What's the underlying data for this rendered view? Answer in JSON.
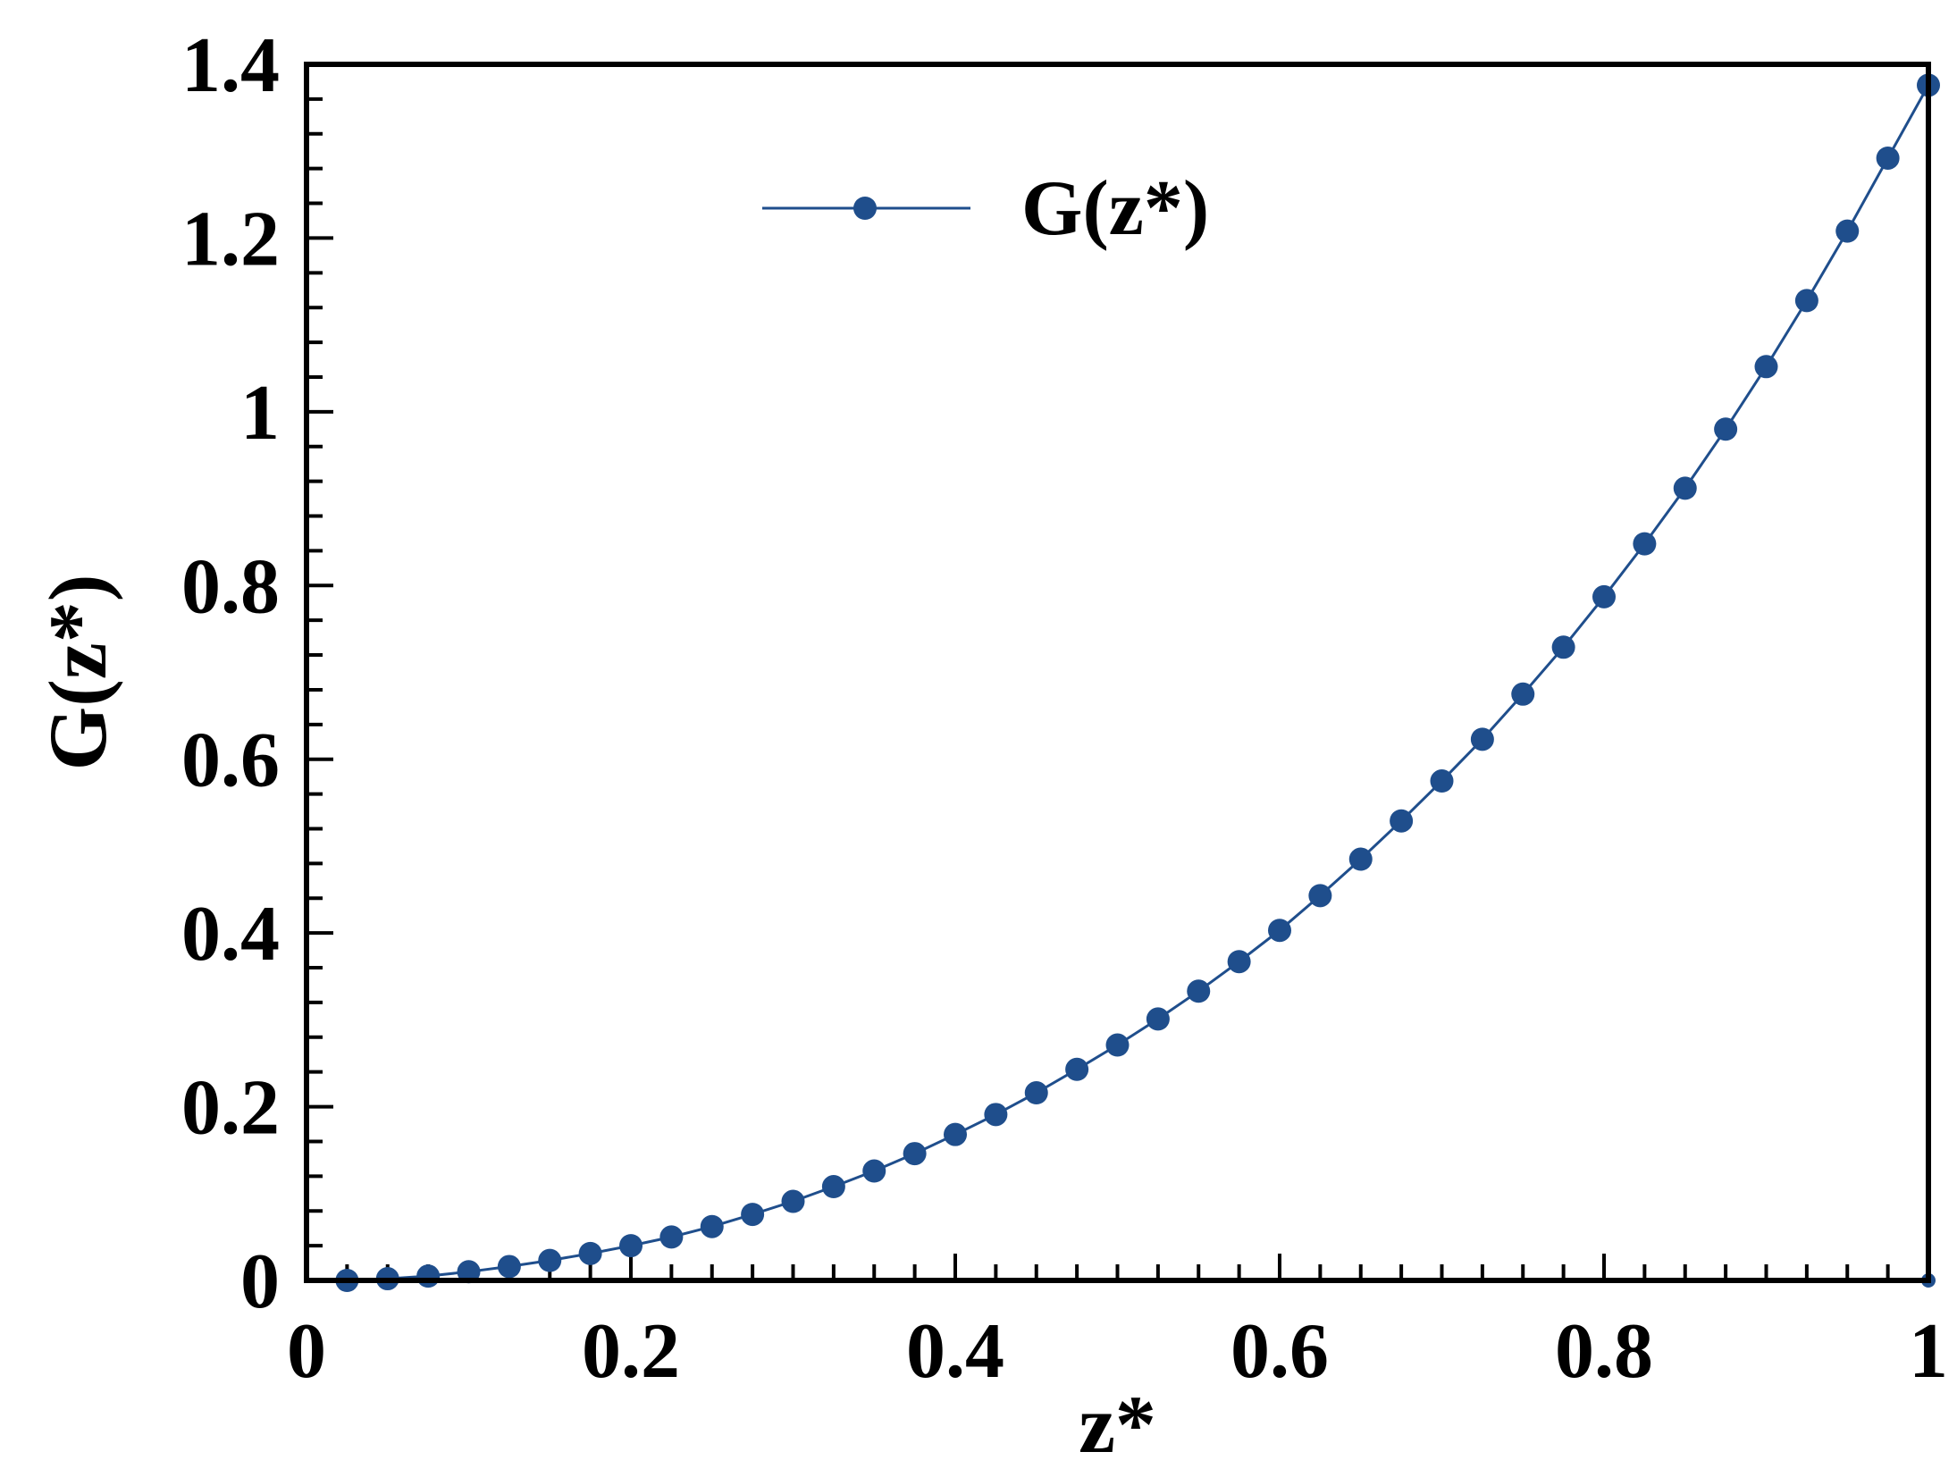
{
  "chart_data": {
    "type": "line",
    "xlabel": "z*",
    "ylabel": "G(z*)",
    "xlim": [
      0,
      1
    ],
    "ylim": [
      0,
      1.4
    ],
    "x_ticks": [
      0,
      0.2,
      0.4,
      0.6,
      0.8,
      1
    ],
    "x_tick_labels": [
      "0",
      "0.2",
      "0.4",
      "0.6",
      "0.8",
      "1"
    ],
    "y_ticks": [
      0,
      0.2,
      0.4,
      0.6,
      0.8,
      1,
      1.2,
      1.4
    ],
    "y_tick_labels": [
      "0",
      "0.2",
      "0.4",
      "0.6",
      "0.8",
      "1",
      "1.2",
      "1.4"
    ],
    "x_minor_step": 0.025,
    "y_minor_step": 0.04,
    "grid": false,
    "legend": {
      "position": "top-center",
      "entries": [
        "G(z*)"
      ]
    },
    "series": [
      {
        "name": "G(z*)",
        "color": "#1f4e8c",
        "marker": "circle",
        "x": [
          0.025,
          0.05,
          0.075,
          0.1,
          0.125,
          0.15,
          0.175,
          0.2,
          0.225,
          0.25,
          0.275,
          0.3,
          0.325,
          0.35,
          0.375,
          0.4,
          0.425,
          0.45,
          0.475,
          0.5,
          0.525,
          0.55,
          0.575,
          0.6,
          0.625,
          0.65,
          0.675,
          0.7,
          0.725,
          0.75,
          0.775,
          0.8,
          0.825,
          0.85,
          0.875,
          0.9,
          0.925,
          0.95,
          0.975,
          1.0
        ],
        "y": [
          0.0,
          0.002,
          0.005,
          0.01,
          0.016,
          0.023,
          0.031,
          0.04,
          0.05,
          0.062,
          0.076,
          0.091,
          0.108,
          0.126,
          0.146,
          0.168,
          0.191,
          0.216,
          0.243,
          0.271,
          0.301,
          0.333,
          0.367,
          0.403,
          0.443,
          0.485,
          0.529,
          0.575,
          0.623,
          0.675,
          0.729,
          0.787,
          0.848,
          0.912,
          0.98,
          1.052,
          1.128,
          1.208,
          1.292,
          1.376
        ]
      }
    ],
    "extra_points": [
      {
        "x": 1.0,
        "y": 0.0
      }
    ]
  }
}
